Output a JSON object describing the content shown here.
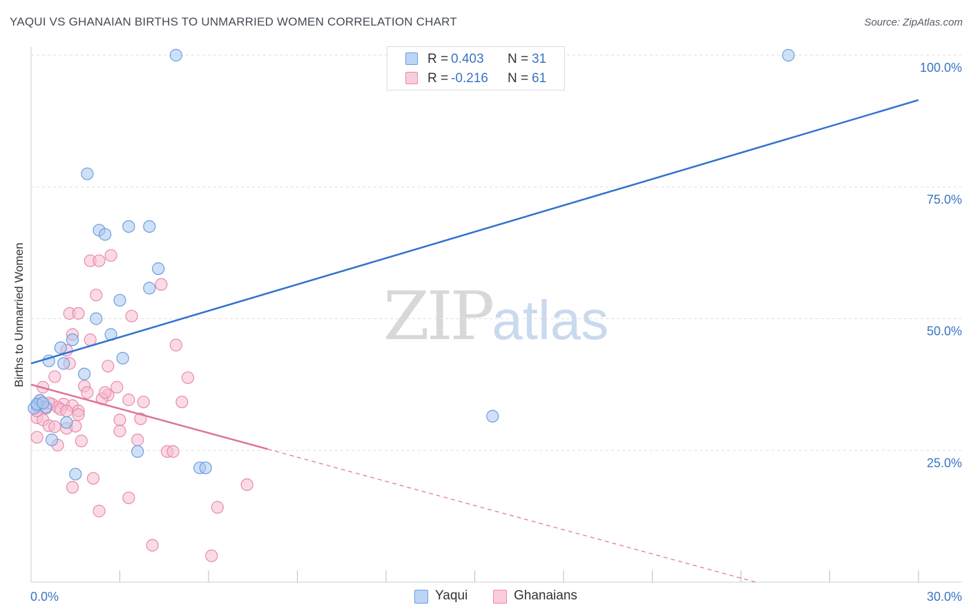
{
  "title": "YAQUI VS GHANAIAN BIRTHS TO UNMARRIED WOMEN CORRELATION CHART",
  "source": "Source: ZipAtlas.com",
  "watermark": {
    "zip": "ZIP",
    "atlas": "atlas"
  },
  "colors": {
    "yaqui_fill": "#a9c8f0",
    "yaqui_stroke": "#6a9be0",
    "yaqui_line": "#2f72cc",
    "ghana_fill": "#f6bcd0",
    "ghana_stroke": "#e88aac",
    "ghana_line": "#e0709a",
    "axis_text": "#3a74c5",
    "grid": "#dddddd"
  },
  "legend": {
    "rows": [
      {
        "series": "Yaqui",
        "r_label": "R =",
        "r_value": "0.403",
        "n_label": "N =",
        "n_value": "31"
      },
      {
        "series": "Ghanaians",
        "r_label": "R =",
        "r_value": "-0.216",
        "n_label": "N =",
        "n_value": "61"
      }
    ]
  },
  "bottom_legend": {
    "yaqui": "Yaqui",
    "ghanaians": "Ghanaians"
  },
  "chart_data": {
    "type": "scatter",
    "title": "YAQUI VS GHANAIAN BIRTHS TO UNMARRIED WOMEN CORRELATION CHART",
    "xlabel": "",
    "ylabel": "Births to Unmarried Women",
    "xlim": [
      0,
      30
    ],
    "ylim": [
      0,
      100
    ],
    "x_tick_labels": [
      {
        "value": 0,
        "label": "0.0%"
      },
      {
        "value": 30,
        "label": "30.0%"
      }
    ],
    "y_tick_labels": [
      {
        "value": 25,
        "label": "25.0%"
      },
      {
        "value": 50,
        "label": "50.0%"
      },
      {
        "value": 75,
        "label": "75.0%"
      },
      {
        "value": 100,
        "label": "100.0%"
      }
    ],
    "x_minor_ticks": [
      3,
      6,
      9,
      12,
      15,
      18,
      21,
      24,
      27,
      30
    ],
    "series": [
      {
        "name": "Yaqui",
        "R": 0.403,
        "N": 31,
        "trend": {
          "x0": 0,
          "y0": 41.5,
          "x1": 30,
          "y1": 91.5,
          "dashed_from": null
        },
        "points": [
          [
            4.9,
            100
          ],
          [
            25.6,
            100
          ],
          [
            1.9,
            77.5
          ],
          [
            2.3,
            66.8
          ],
          [
            2.5,
            66
          ],
          [
            3.3,
            67.5
          ],
          [
            4.0,
            67.5
          ],
          [
            4.3,
            59.5
          ],
          [
            4.0,
            55.8
          ],
          [
            3.0,
            53.5
          ],
          [
            2.2,
            50
          ],
          [
            2.7,
            47
          ],
          [
            1.4,
            46
          ],
          [
            1.0,
            44.5
          ],
          [
            0.6,
            42
          ],
          [
            1.1,
            41.5
          ],
          [
            3.1,
            42.5
          ],
          [
            1.8,
            39.5
          ],
          [
            0.2,
            33.5
          ],
          [
            0.3,
            34.5
          ],
          [
            0.1,
            33
          ],
          [
            0.5,
            33.2
          ],
          [
            0.2,
            33.8
          ],
          [
            1.2,
            30.3
          ],
          [
            0.7,
            27
          ],
          [
            15.6,
            31.5
          ],
          [
            3.6,
            24.8
          ],
          [
            5.7,
            21.7
          ],
          [
            5.9,
            21.7
          ],
          [
            1.5,
            20.5
          ],
          [
            0.4,
            34
          ]
        ]
      },
      {
        "name": "Ghanaians",
        "R": -0.216,
        "N": 61,
        "trend": {
          "x0": 0,
          "y0": 37.5,
          "x1": 24.5,
          "y1": 0,
          "solid_until_x": 8.0
        },
        "points": [
          [
            2.7,
            62
          ],
          [
            2.0,
            61
          ],
          [
            2.3,
            61
          ],
          [
            4.4,
            56.5
          ],
          [
            2.2,
            54.5
          ],
          [
            1.3,
            51
          ],
          [
            1.6,
            51
          ],
          [
            3.4,
            50.5
          ],
          [
            1.4,
            47
          ],
          [
            2.0,
            46
          ],
          [
            4.9,
            45
          ],
          [
            1.2,
            44
          ],
          [
            1.3,
            41.5
          ],
          [
            2.6,
            41
          ],
          [
            0.8,
            39
          ],
          [
            5.3,
            38.8
          ],
          [
            0.4,
            37
          ],
          [
            1.8,
            37.2
          ],
          [
            2.9,
            37
          ],
          [
            1.9,
            36
          ],
          [
            2.6,
            35.5
          ],
          [
            2.4,
            34.8
          ],
          [
            3.3,
            34.6
          ],
          [
            3.8,
            34.2
          ],
          [
            5.1,
            34.2
          ],
          [
            0.3,
            34.5
          ],
          [
            0.7,
            33.8
          ],
          [
            1.1,
            33.8
          ],
          [
            1.4,
            33.5
          ],
          [
            0.9,
            33.2
          ],
          [
            1.0,
            32.8
          ],
          [
            1.2,
            32.5
          ],
          [
            1.6,
            32.5
          ],
          [
            1.6,
            31.8
          ],
          [
            0.2,
            31.2
          ],
          [
            0.4,
            30.8
          ],
          [
            3.0,
            30.8
          ],
          [
            3.7,
            31
          ],
          [
            0.6,
            29.7
          ],
          [
            0.8,
            29.5
          ],
          [
            1.2,
            29.2
          ],
          [
            1.5,
            29.6
          ],
          [
            3.0,
            28.7
          ],
          [
            0.2,
            27.5
          ],
          [
            1.7,
            26.8
          ],
          [
            3.6,
            27
          ],
          [
            0.9,
            26
          ],
          [
            4.6,
            24.8
          ],
          [
            4.8,
            24.8
          ],
          [
            2.1,
            19.7
          ],
          [
            1.4,
            18
          ],
          [
            7.3,
            18.5
          ],
          [
            3.3,
            16
          ],
          [
            6.3,
            14.2
          ],
          [
            2.3,
            13.5
          ],
          [
            4.1,
            7
          ],
          [
            6.1,
            5
          ],
          [
            0.5,
            33
          ],
          [
            0.2,
            32.5
          ],
          [
            0.6,
            34
          ],
          [
            2.5,
            36
          ]
        ]
      }
    ]
  }
}
